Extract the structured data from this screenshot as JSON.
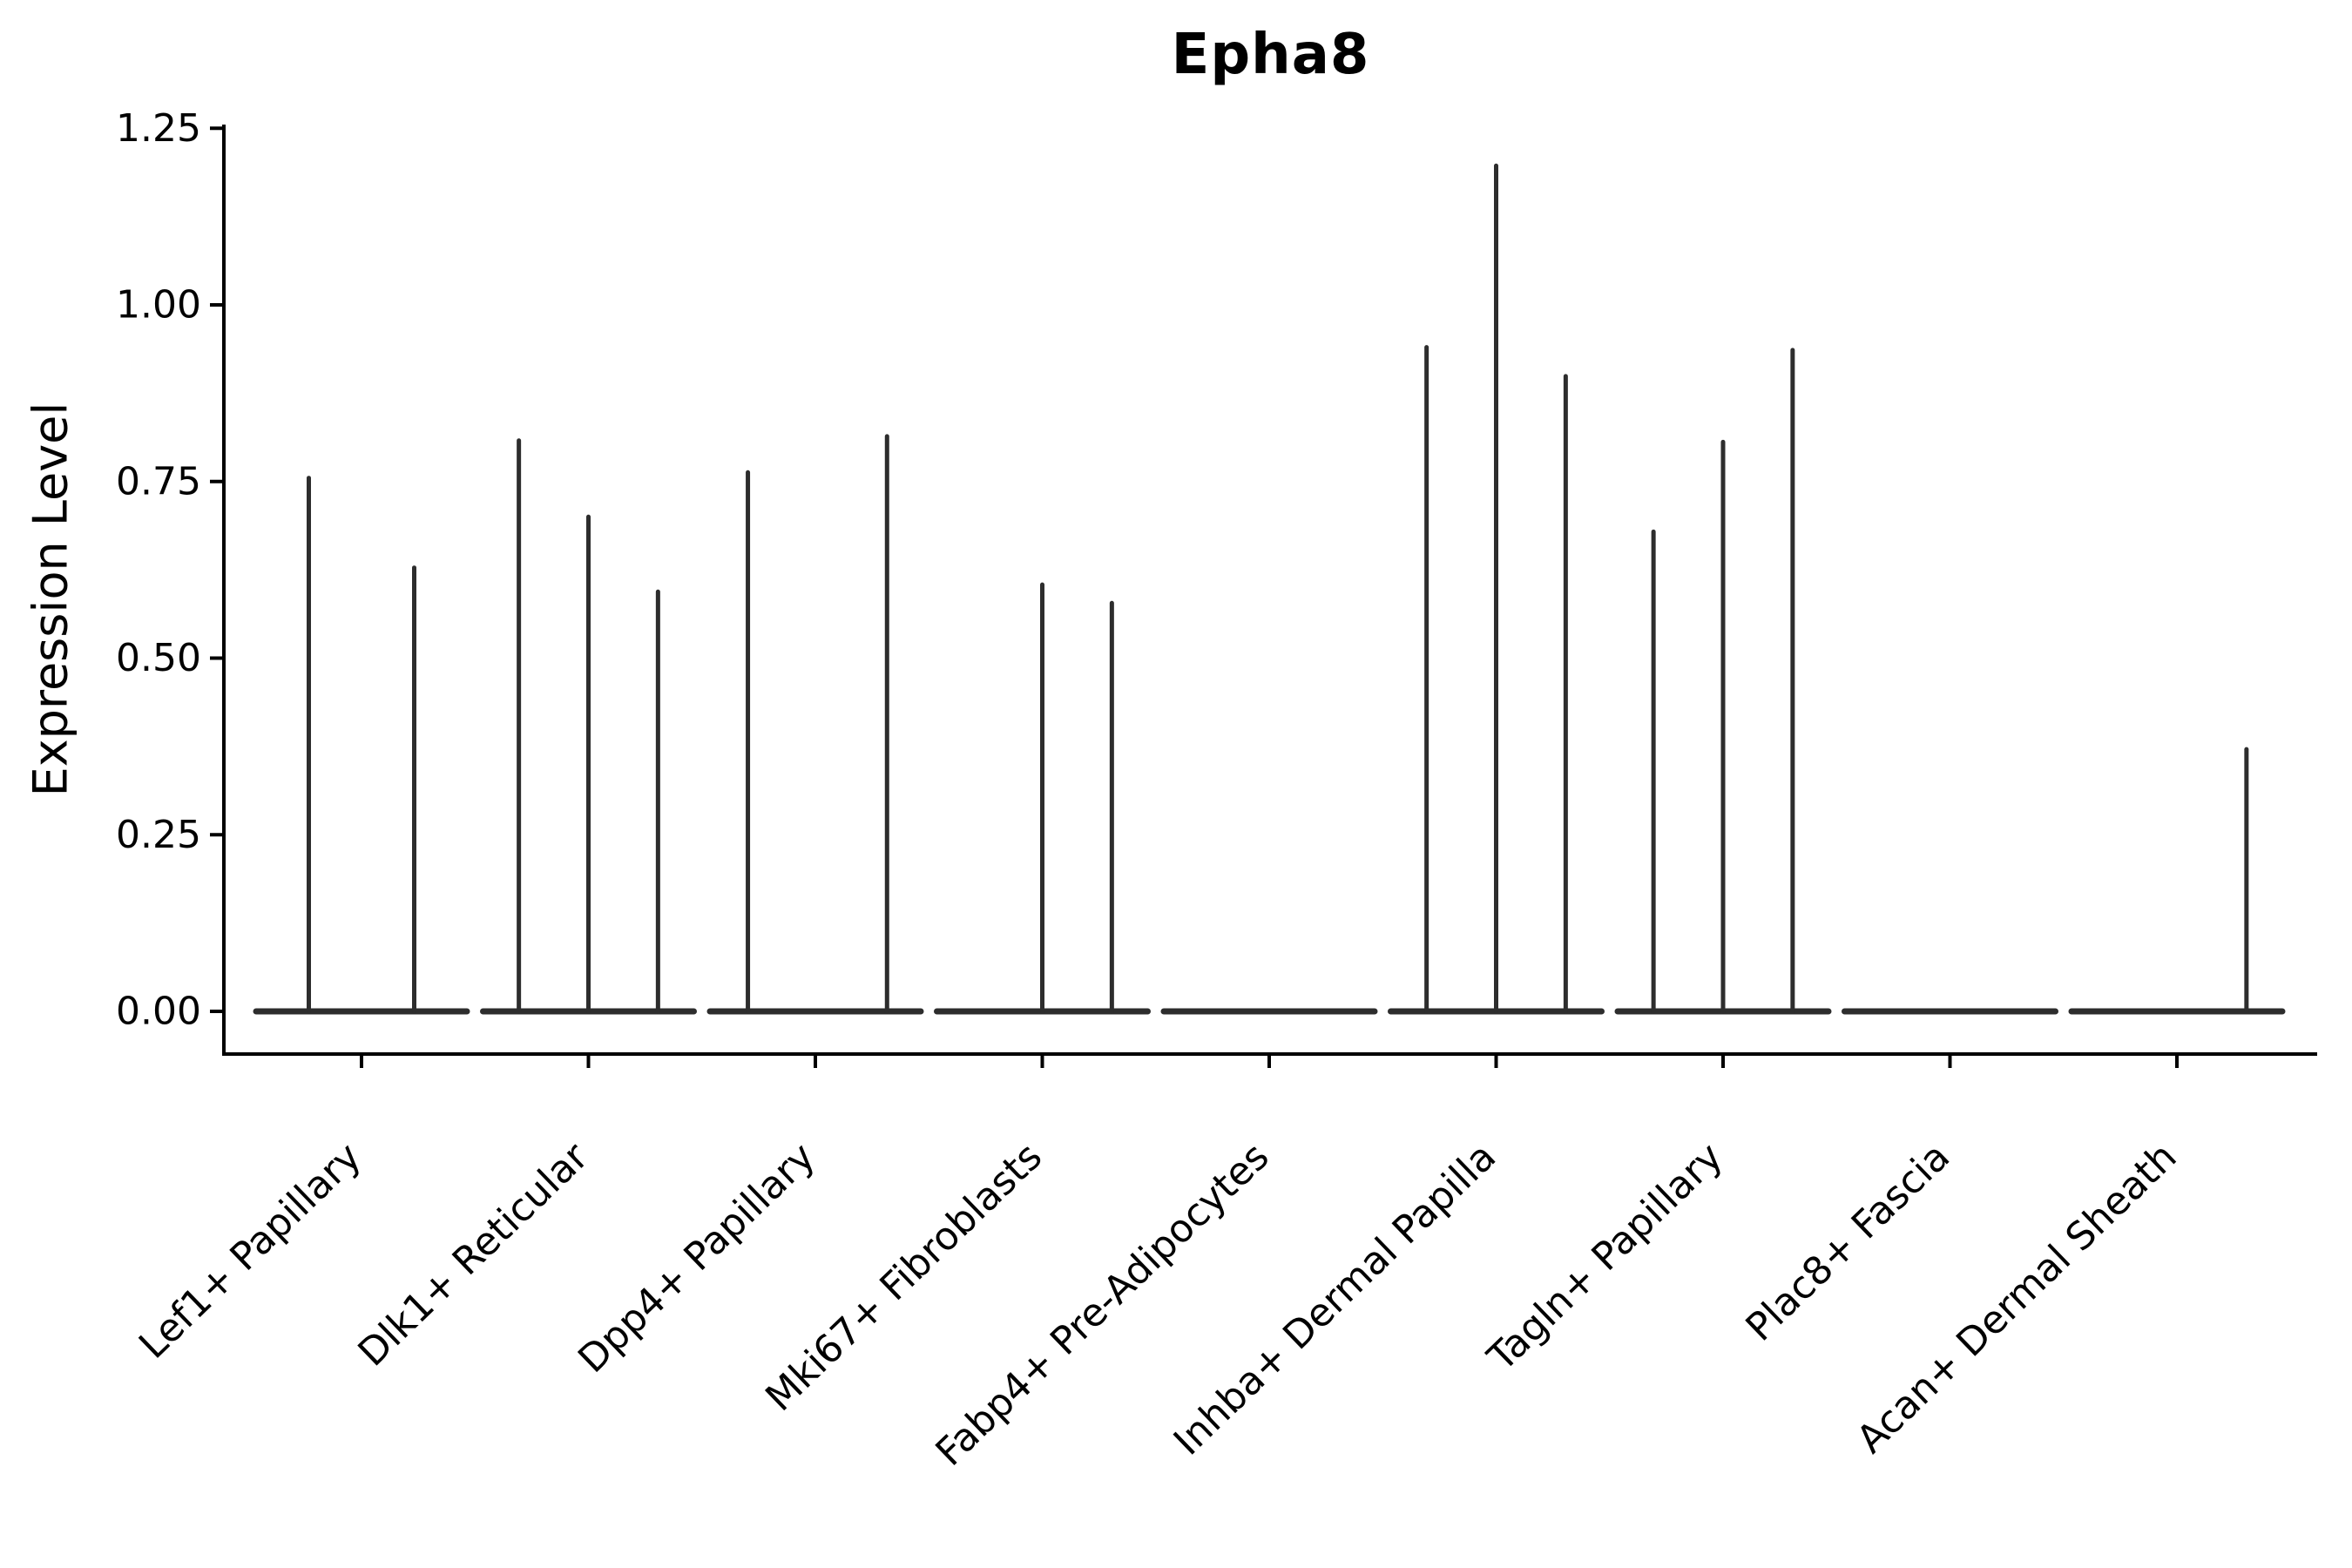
{
  "chart_data": {
    "type": "violin",
    "title": "Epha8",
    "ylabel": "Expression Level",
    "xlabel": "",
    "ylim": [
      0,
      1.25
    ],
    "grid": false,
    "legend": "none",
    "y_ticks": {
      "values": [
        0.0,
        0.25,
        0.5,
        0.75,
        1.0,
        1.25
      ],
      "labels": [
        "0.00",
        "0.25",
        "0.50",
        "0.75",
        "1.00",
        "1.25"
      ]
    },
    "note": "Needle-thin violins: nearly all cells at 0 expression (flat baseline bar per category); 'pos' is the violin slot position within the category band (0..1), 'peak' is the max expression level reached by that violin's tail.",
    "groups": [
      {
        "category": "Lef1+ Papillary",
        "violins": [
          {
            "pos": 0.25,
            "peak": 0.755
          },
          {
            "pos": 0.75,
            "peak": 0.628
          }
        ]
      },
      {
        "category": "Dlk1+ Reticular",
        "violins": [
          {
            "pos": 0.17,
            "peak": 0.808
          },
          {
            "pos": 0.5,
            "peak": 0.7
          },
          {
            "pos": 0.83,
            "peak": 0.594
          }
        ]
      },
      {
        "category": "Dpp4+ Papillary",
        "violins": [
          {
            "pos": 0.18,
            "peak": 0.763
          },
          {
            "pos": 0.84,
            "peak": 0.814
          }
        ]
      },
      {
        "category": "Mki67+ Fibroblasts",
        "violins": [
          {
            "pos": 0.5,
            "peak": 0.604
          },
          {
            "pos": 0.83,
            "peak": 0.578
          }
        ]
      },
      {
        "category": "Fabp4+ Pre-Adipocytes",
        "violins": []
      },
      {
        "category": "Inhba+ Dermal Papilla",
        "violins": [
          {
            "pos": 0.17,
            "peak": 0.94
          },
          {
            "pos": 0.5,
            "peak": 1.197
          },
          {
            "pos": 0.83,
            "peak": 0.899
          }
        ]
      },
      {
        "category": "Tagln+ Papillary",
        "violins": [
          {
            "pos": 0.17,
            "peak": 0.679
          },
          {
            "pos": 0.5,
            "peak": 0.806
          },
          {
            "pos": 0.83,
            "peak": 0.936
          }
        ]
      },
      {
        "category": "Plac8+ Fascia",
        "violins": []
      },
      {
        "category": "Acan+ Dermal Sheath",
        "violins": [
          {
            "pos": 0.83,
            "peak": 0.371
          }
        ]
      }
    ],
    "colors": {
      "violin_line": "#2d2d2d",
      "spine": "#000000",
      "text": "#000000",
      "background": "#ffffff"
    }
  }
}
